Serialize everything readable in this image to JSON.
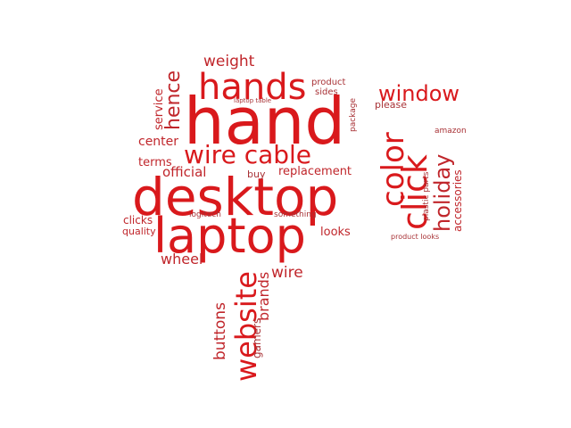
{
  "wordcloud": {
    "accent_colors": [
      "#d9191c",
      "#c0262b",
      "#a83236",
      "#8f3a3e"
    ],
    "words": {
      "hand": "hand",
      "desktop": "desktop",
      "laptop": "laptop",
      "hands": "hands",
      "wire_cable": "wire cable",
      "window": "window",
      "color": "color",
      "click": "click",
      "website": "website",
      "holiday": "holiday",
      "hence": "hence",
      "weight": "weight",
      "service": "service",
      "center": "center",
      "terms": "terms",
      "official": "official",
      "buy": "buy",
      "replacement": "replacement",
      "product": "product",
      "sides": "sides",
      "laptop_table": "laptop table",
      "package": "package",
      "please": "please",
      "amazon": "amazon",
      "plastic_parts": "plastic parts",
      "accessories": "accessories",
      "product_looks": "product looks",
      "clicks": "clicks",
      "quality": "quality",
      "logitech": "logitech",
      "something": "something",
      "looks": "looks",
      "wheel": "wheel",
      "brands": "brands",
      "wire": "wire",
      "buttons": "buttons",
      "gamers": "gamers"
    }
  }
}
